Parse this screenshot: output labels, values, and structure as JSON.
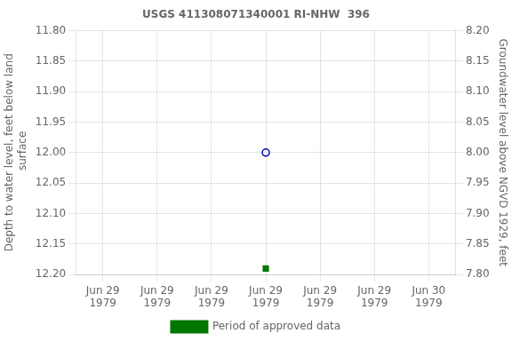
{
  "chart_data": {
    "type": "scatter",
    "title": "USGS 411308071340001 RI-NHW  396",
    "ylabel": "Depth to water level, feet below land\n surface",
    "y2label": "Groundwater level above NGVD 1929, feet",
    "categories": [
      "Jun 29\n1979",
      "Jun 29\n1979",
      "Jun 29\n1979",
      "Jun 29\n1979",
      "Jun 29\n1979",
      "Jun 29\n1979",
      "Jun 30\n1979"
    ],
    "series": [
      {
        "color": "#0000bb",
        "marker": "open_circle",
        "values": [
          null,
          null,
          null,
          12.0,
          null,
          null,
          null
        ]
      },
      {
        "name": "Period of approved data",
        "color": "#007700",
        "marker": "square",
        "values": [
          null,
          null,
          null,
          12.19,
          null,
          null,
          null
        ]
      }
    ],
    "ylim": [
      12.2,
      11.8
    ],
    "yticks": [
      {
        "value": 11.8,
        "label": "11.80"
      },
      {
        "value": 11.85,
        "label": "11.85"
      },
      {
        "value": 11.9,
        "label": "11.90"
      },
      {
        "value": 11.95,
        "label": "11.95"
      },
      {
        "value": 12.0,
        "label": "12.00"
      },
      {
        "value": 12.05,
        "label": "12.05"
      },
      {
        "value": 12.1,
        "label": "12.10"
      },
      {
        "value": 12.15,
        "label": "12.15"
      },
      {
        "value": 12.2,
        "label": "12.20"
      }
    ],
    "y2lim": [
      7.8,
      8.2
    ],
    "y2ticks": [
      {
        "value": 7.8,
        "label": "7.80"
      },
      {
        "value": 7.85,
        "label": "7.85"
      },
      {
        "value": 7.9,
        "label": "7.90"
      },
      {
        "value": 7.95,
        "label": "7.95"
      },
      {
        "value": 8.0,
        "label": "8.00"
      },
      {
        "value": 8.05,
        "label": "8.05"
      },
      {
        "value": 8.1,
        "label": "8.10"
      },
      {
        "value": 8.15,
        "label": "8.15"
      },
      {
        "value": 8.2,
        "label": "8.20"
      }
    ],
    "grid": true,
    "legend": "bottom"
  }
}
